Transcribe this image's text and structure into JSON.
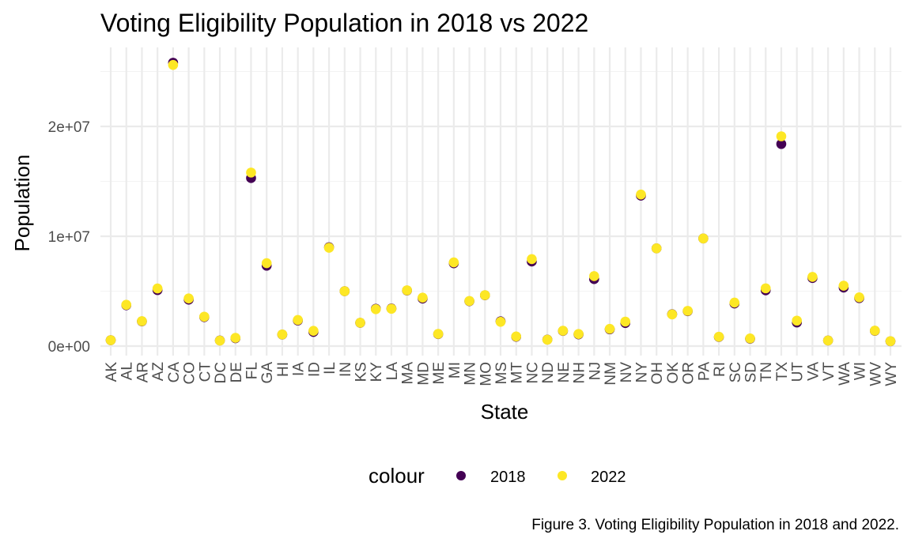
{
  "chart_data": {
    "type": "scatter",
    "title": "Voting Eligibility Population in 2018 vs 2022",
    "xlabel": "State",
    "ylabel": "Population",
    "caption": "Figure 3. Voting Eligibility Population in 2018 and 2022.",
    "legend": {
      "title": "colour",
      "position": "bottom"
    },
    "ylim": [
      -700000,
      26500000
    ],
    "yticks": [
      {
        "value": 0,
        "label": "0e+00"
      },
      {
        "value": 10000000,
        "label": "1e+07"
      },
      {
        "value": 20000000,
        "label": "2e+07"
      }
    ],
    "grid": true,
    "categories": [
      "AK",
      "AL",
      "AR",
      "AZ",
      "CA",
      "CO",
      "CT",
      "DC",
      "DE",
      "FL",
      "GA",
      "HI",
      "IA",
      "ID",
      "IL",
      "IN",
      "KS",
      "KY",
      "LA",
      "MA",
      "MD",
      "ME",
      "MI",
      "MN",
      "MO",
      "MS",
      "MT",
      "NC",
      "ND",
      "NE",
      "NH",
      "NJ",
      "NM",
      "NV",
      "NY",
      "OH",
      "OK",
      "OR",
      "PA",
      "RI",
      "SC",
      "SD",
      "TN",
      "TX",
      "UT",
      "VA",
      "VT",
      "WA",
      "WI",
      "WV",
      "WY"
    ],
    "series": [
      {
        "name": "2018",
        "color": "#440154",
        "values": [
          540000,
          3720000,
          2250000,
          5100000,
          25800000,
          4230000,
          2640000,
          510000,
          720000,
          15300000,
          7320000,
          1050000,
          2330000,
          1290000,
          9000000,
          5000000,
          2120000,
          3400000,
          3420000,
          5060000,
          4330000,
          1090000,
          7540000,
          4090000,
          4630000,
          2250000,
          850000,
          7700000,
          590000,
          1380000,
          1070000,
          6100000,
          1530000,
          2100000,
          13700000,
          8900000,
          2900000,
          3180000,
          9800000,
          830000,
          3880000,
          670000,
          5080000,
          18400000,
          2150000,
          6200000,
          510000,
          5330000,
          4370000,
          1390000,
          440000
        ]
      },
      {
        "name": "2022",
        "color": "#fde725",
        "values": [
          540000,
          3760000,
          2270000,
          5250000,
          25600000,
          4340000,
          2680000,
          500000,
          750000,
          15800000,
          7550000,
          1060000,
          2380000,
          1390000,
          8950000,
          5000000,
          2130000,
          3360000,
          3400000,
          5080000,
          4410000,
          1110000,
          7620000,
          4110000,
          4640000,
          2210000,
          880000,
          7920000,
          580000,
          1400000,
          1100000,
          6370000,
          1570000,
          2230000,
          13800000,
          8900000,
          2880000,
          3210000,
          9800000,
          850000,
          3960000,
          700000,
          5260000,
          19100000,
          2320000,
          6300000,
          510000,
          5500000,
          4440000,
          1410000,
          450000
        ]
      }
    ]
  }
}
